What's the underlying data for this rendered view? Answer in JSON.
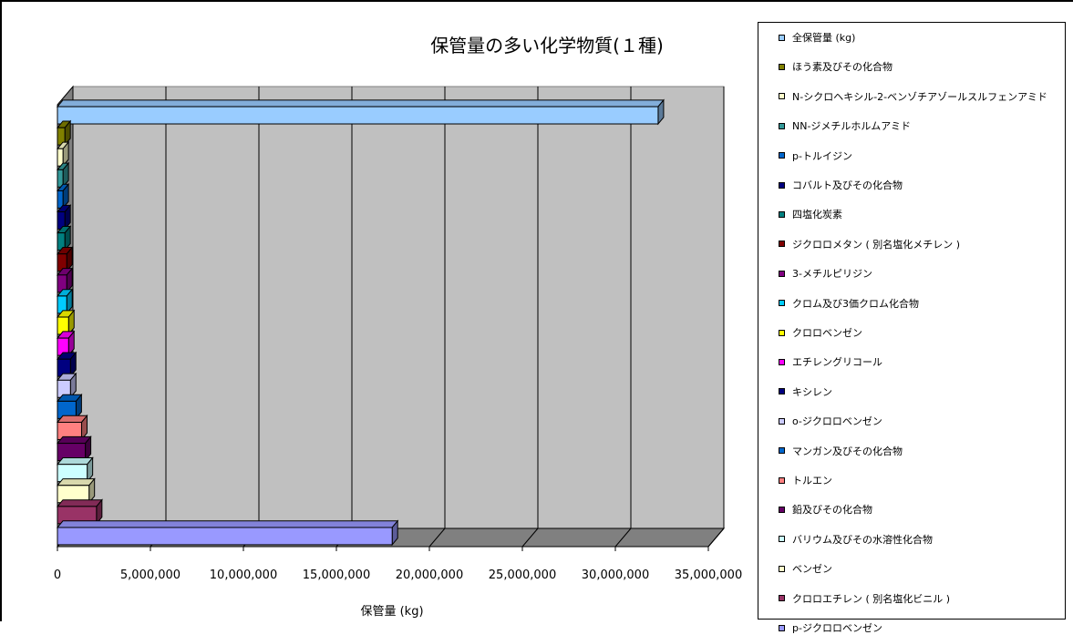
{
  "chart_data": {
    "type": "bar",
    "orientation": "horizontal",
    "style": "3d",
    "title": "保管量の多い化学物質(１種)",
    "xlabel": "保管量 (kg)",
    "ylabel": "",
    "xlim": [
      0,
      35000000
    ],
    "xticks": [
      "0",
      "5,000,000",
      "10,000,000",
      "15,000,000",
      "20,000,000",
      "25,000,000",
      "30,000,000",
      "35,000,000"
    ],
    "grid": true,
    "legend_position": "right",
    "series": [
      {
        "name": "全保管量 (kg)",
        "value": 32300000,
        "color": "#99ccff"
      },
      {
        "name": "ほう素及びその化合物",
        "value": 400000,
        "color": "#808000"
      },
      {
        "name": "N-シクロヘキシル-2-ベンゾチアゾールスルフェンアミド",
        "value": 300000,
        "color": "#ffffcc"
      },
      {
        "name": "NN-ジメチルホルムアミド",
        "value": 300000,
        "color": "#339999"
      },
      {
        "name": "p-トルイジン",
        "value": 300000,
        "color": "#0066cc"
      },
      {
        "name": "コバルト及びその化合物",
        "value": 400000,
        "color": "#000080"
      },
      {
        "name": "四塩化炭素",
        "value": 400000,
        "color": "#008080"
      },
      {
        "name": "ジクロロメタン ( 別名塩化メチレン )",
        "value": 500000,
        "color": "#800000"
      },
      {
        "name": "3-メチルピリジン",
        "value": 500000,
        "color": "#800080"
      },
      {
        "name": "クロム及び3価クロム化合物",
        "value": 500000,
        "color": "#00ccff"
      },
      {
        "name": "クロロベンゼン",
        "value": 600000,
        "color": "#ffff00"
      },
      {
        "name": "エチレングリコール",
        "value": 600000,
        "color": "#ff00ff"
      },
      {
        "name": "キシレン",
        "value": 700000,
        "color": "#000080"
      },
      {
        "name": "o-ジクロロベンゼン",
        "value": 700000,
        "color": "#ccccff"
      },
      {
        "name": "マンガン及びその化合物",
        "value": 1000000,
        "color": "#0066cc"
      },
      {
        "name": "トルエン",
        "value": 1300000,
        "color": "#ff8080"
      },
      {
        "name": "鉛及びその化合物",
        "value": 1500000,
        "color": "#660066"
      },
      {
        "name": "バリウム及びその水溶性化合物",
        "value": 1600000,
        "color": "#ccffff"
      },
      {
        "name": "ベンゼン",
        "value": 1700000,
        "color": "#ffffcc"
      },
      {
        "name": "クロロエチレン ( 別名塩化ビニル )",
        "value": 2100000,
        "color": "#993366"
      },
      {
        "name": "p-ジクロロベンゼン",
        "value": 18000000,
        "color": "#9999ff"
      }
    ]
  }
}
